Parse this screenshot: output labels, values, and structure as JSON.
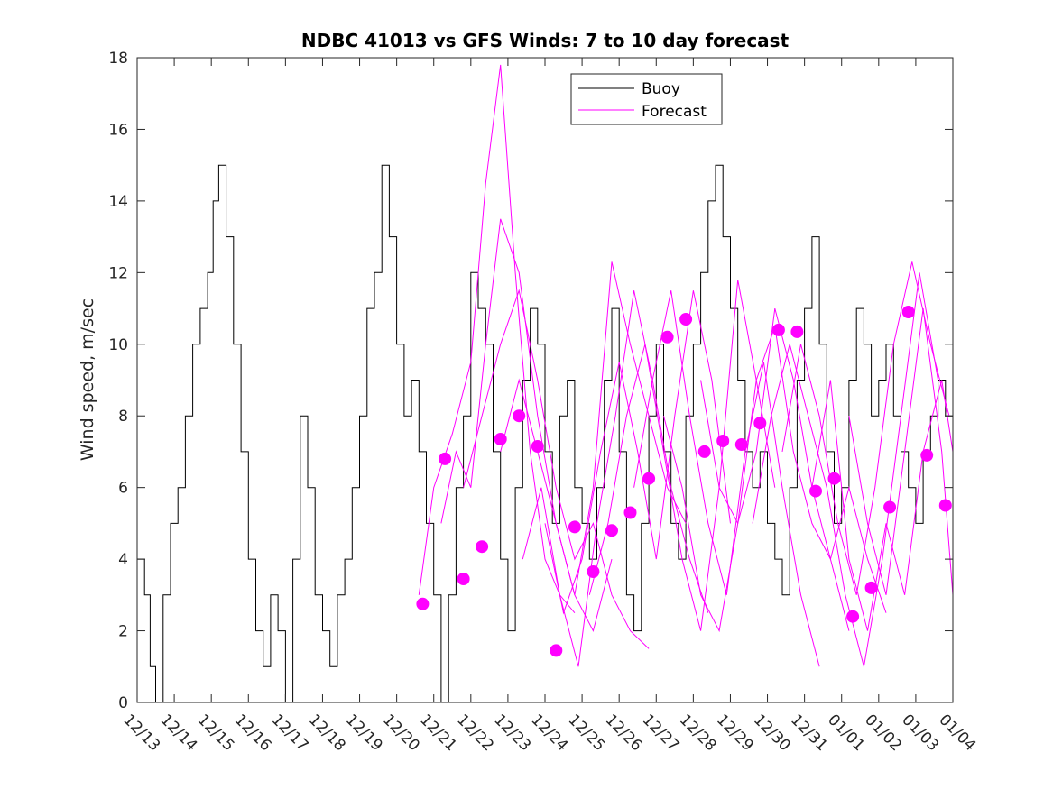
{
  "chart_data": {
    "type": "line",
    "title": "NDBC 41013 vs GFS Winds: 7 to 10 day forecast",
    "xlabel": "",
    "ylabel": "Wind speed, m/sec",
    "xlim": [
      0,
      22
    ],
    "ylim": [
      0,
      18
    ],
    "yticks": [
      0,
      2,
      4,
      6,
      8,
      10,
      12,
      14,
      16,
      18
    ],
    "xtick_labels": [
      "12/13",
      "12/14",
      "12/15",
      "12/16",
      "12/17",
      "12/18",
      "12/19",
      "12/20",
      "12/21",
      "12/22",
      "12/23",
      "12/24",
      "12/25",
      "12/26",
      "12/27",
      "12/28",
      "12/29",
      "12/30",
      "12/31",
      "01/01",
      "01/02",
      "01/03",
      "01/04"
    ],
    "legend": {
      "position": "top-center",
      "entries": [
        {
          "name": "Buoy",
          "color": "#000000"
        },
        {
          "name": "Forecast",
          "color": "#ff00ff"
        }
      ]
    },
    "colors": {
      "buoy": "#000000",
      "forecast": "#ff00ff"
    },
    "series": [
      {
        "name": "Buoy",
        "x": [
          0,
          0.2,
          0.35,
          0.5,
          0.7,
          0.9,
          1.1,
          1.3,
          1.5,
          1.7,
          1.9,
          2.05,
          2.2,
          2.4,
          2.6,
          2.8,
          3.0,
          3.2,
          3.4,
          3.6,
          3.8,
          4.0,
          4.2,
          4.4,
          4.6,
          4.8,
          5.0,
          5.2,
          5.4,
          5.6,
          5.8,
          6.0,
          6.2,
          6.4,
          6.6,
          6.8,
          7.0,
          7.2,
          7.4,
          7.6,
          7.8,
          8.0,
          8.2,
          8.4,
          8.6,
          8.8,
          9.0,
          9.2,
          9.4,
          9.6,
          9.8,
          10.0,
          10.2,
          10.4,
          10.6,
          10.8,
          11.0,
          11.2,
          11.4,
          11.6,
          11.8,
          12.0,
          12.2,
          12.4,
          12.6,
          12.8,
          13.0,
          13.2,
          13.4,
          13.6,
          13.8,
          14.0,
          14.2,
          14.4,
          14.6,
          14.8,
          15.0,
          15.2,
          15.4,
          15.6,
          15.8,
          16.0,
          16.2,
          16.4,
          16.6,
          16.8,
          17.0,
          17.2,
          17.4,
          17.6,
          17.8,
          18.0,
          18.2,
          18.4,
          18.6,
          18.8,
          19.0,
          19.2,
          19.4,
          19.6,
          19.8,
          20.0,
          20.2,
          20.4,
          20.6,
          20.8,
          21.0,
          21.2,
          21.4,
          21.6,
          21.8,
          22.0
        ],
        "values": [
          4,
          3,
          1,
          0,
          3,
          5,
          6,
          8,
          10,
          11,
          12,
          14,
          15,
          13,
          10,
          7,
          4,
          2,
          1,
          3,
          2,
          0,
          4,
          8,
          6,
          3,
          2,
          1,
          3,
          4,
          6,
          8,
          11,
          12,
          15,
          13,
          10,
          8,
          9,
          7,
          5,
          3,
          0,
          3,
          6,
          8,
          12,
          11,
          10,
          7,
          4,
          2,
          6,
          9,
          11,
          10,
          7,
          5,
          8,
          9,
          6,
          5,
          4,
          6,
          9,
          11,
          7,
          3,
          2,
          5,
          8,
          10,
          7,
          5,
          4,
          8,
          10,
          12,
          14,
          15,
          13,
          11,
          9,
          7,
          6,
          7,
          5,
          4,
          3,
          6,
          9,
          11,
          13,
          10,
          7,
          5,
          6,
          9,
          11,
          10,
          8,
          9,
          10,
          8,
          7,
          6,
          5,
          7,
          8,
          9,
          8,
          7
        ]
      },
      {
        "name": "Forecast",
        "x": [
          7.6,
          8.0,
          8.5,
          9.0,
          9.4,
          9.8,
          10.2,
          10.6,
          11.0,
          11.4,
          11.8
        ],
        "values": [
          3,
          6,
          7.5,
          9.5,
          14.5,
          17.8,
          12,
          7,
          4,
          3,
          2.5
        ]
      },
      {
        "name": "Forecast",
        "x": [
          8.2,
          8.6,
          9.0,
          9.4,
          9.8,
          10.3,
          10.8,
          11.3,
          11.8,
          12.3,
          12.8
        ],
        "values": [
          5,
          7,
          6,
          10,
          13.5,
          12,
          8,
          5,
          3,
          2,
          4
        ]
      },
      {
        "name": "Forecast",
        "x": [
          8.8,
          9.3,
          9.8,
          10.3,
          10.8,
          11.3,
          11.8,
          12.3,
          12.8,
          13.3,
          13.8
        ],
        "values": [
          6,
          8,
          10,
          11.5,
          9,
          6,
          4,
          5,
          3,
          2,
          1.5
        ]
      },
      {
        "name": "Forecast",
        "x": [
          9.8,
          10.3,
          10.8,
          11.3,
          11.8,
          12.3,
          12.8,
          13.3,
          13.8,
          14.3,
          14.8
        ],
        "values": [
          7,
          9,
          7,
          5,
          3,
          6,
          12.3,
          10,
          8,
          6,
          5
        ]
      },
      {
        "name": "Forecast",
        "x": [
          10.4,
          10.9,
          11.4,
          11.9,
          12.4,
          12.9,
          13.4,
          13.9,
          14.4,
          14.9,
          15.4
        ],
        "values": [
          4,
          6,
          3,
          1,
          5,
          8,
          11.5,
          9,
          6,
          4,
          2.5
        ]
      },
      {
        "name": "Forecast",
        "x": [
          11.0,
          11.5,
          12.0,
          12.5,
          13.0,
          13.5,
          14.0,
          14.5,
          15.0,
          15.5,
          16.0
        ],
        "values": [
          5,
          2.5,
          4,
          7,
          9.5,
          7,
          4,
          8,
          11.5,
          9,
          5
        ]
      },
      {
        "name": "Forecast",
        "x": [
          12.2,
          12.7,
          13.2,
          13.7,
          14.2,
          14.7,
          15.2,
          15.7,
          16.2,
          16.7,
          17.2
        ],
        "values": [
          3,
          5,
          8,
          10,
          7,
          4,
          2,
          6,
          11.8,
          9,
          6
        ]
      },
      {
        "name": "Forecast",
        "x": [
          13.4,
          13.9,
          14.4,
          14.9,
          15.4,
          15.9,
          16.4,
          16.9,
          17.4,
          17.9,
          18.4
        ],
        "values": [
          6,
          9,
          11.5,
          8,
          5,
          3,
          7,
          9.5,
          6,
          3,
          1
        ]
      },
      {
        "name": "Forecast",
        "x": [
          14.2,
          14.7,
          15.2,
          15.7,
          16.2,
          16.7,
          17.2,
          17.7,
          18.2,
          18.7,
          19.2
        ],
        "values": [
          8,
          6,
          3,
          2,
          5,
          9,
          10.5,
          7,
          5,
          4,
          2
        ]
      },
      {
        "name": "Forecast",
        "x": [
          15.2,
          15.7,
          16.2,
          16.7,
          17.2,
          17.7,
          18.2,
          18.7,
          19.2,
          19.7,
          20.2
        ],
        "values": [
          9,
          6,
          5,
          7,
          11,
          9,
          6,
          4,
          6,
          4,
          2.5
        ]
      },
      {
        "name": "Forecast",
        "x": [
          16.6,
          17.1,
          17.6,
          18.1,
          18.6,
          19.1,
          19.6,
          20.1,
          20.6,
          21.1,
          21.6
        ],
        "values": [
          5,
          8,
          10,
          8,
          6,
          3,
          1,
          4,
          8,
          12,
          9
        ]
      },
      {
        "name": "Forecast",
        "x": [
          17.4,
          17.9,
          18.4,
          18.9,
          19.4,
          19.9,
          20.4,
          20.9,
          21.4,
          21.9
        ],
        "values": [
          7,
          10,
          8,
          5,
          3,
          6,
          10,
          12.3,
          10,
          8
        ]
      },
      {
        "name": "Forecast",
        "x": [
          18.2,
          18.7,
          19.2,
          19.7,
          20.2,
          20.7,
          21.2,
          21.7,
          22.0
        ],
        "values": [
          6,
          9,
          4,
          2,
          5,
          3,
          7,
          9,
          7
        ]
      },
      {
        "name": "Forecast",
        "x": [
          19.2,
          19.7,
          20.2,
          20.7,
          21.2,
          21.7,
          22.0
        ],
        "values": [
          8,
          5,
          3,
          7,
          11,
          7,
          3
        ]
      }
    ],
    "markers": {
      "name": "Forecast",
      "x": [
        7.7,
        8.3,
        8.8,
        9.3,
        9.8,
        10.3,
        10.8,
        11.3,
        11.8,
        12.3,
        12.8,
        13.3,
        13.8,
        14.3,
        14.8,
        15.3,
        15.8,
        16.3,
        16.8,
        17.3,
        17.8,
        18.3,
        18.8,
        19.3,
        19.8,
        20.3,
        20.8,
        21.3,
        21.8
      ],
      "values": [
        2.75,
        6.8,
        3.45,
        4.35,
        7.35,
        8.0,
        7.15,
        1.45,
        4.9,
        3.65,
        4.8,
        5.3,
        6.25,
        10.2,
        10.7,
        7.0,
        7.3,
        7.2,
        7.8,
        10.4,
        10.35,
        5.9,
        6.25,
        2.4,
        3.2,
        5.45,
        10.9,
        6.9,
        5.5
      ]
    }
  }
}
